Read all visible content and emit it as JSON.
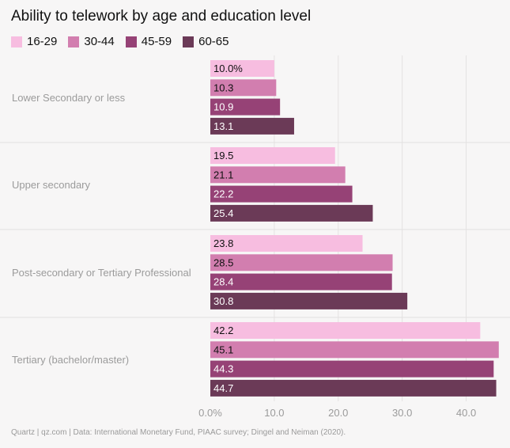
{
  "chart_data": {
    "type": "bar",
    "orientation": "horizontal",
    "title": "Ability to telework by age and education level",
    "categories": [
      "Lower Secondary or less",
      "Upper secondary",
      "Post-secondary or Tertiary Professional",
      "Tertiary (bachelor/master)"
    ],
    "series": [
      {
        "name": "16-29",
        "color": "#f7bde0",
        "values": [
          10.0,
          19.5,
          23.8,
          42.2
        ],
        "labels": [
          "10.0%",
          "19.5",
          "23.8",
          "42.2"
        ]
      },
      {
        "name": "30-44",
        "color": "#d27eaf",
        "values": [
          10.3,
          21.1,
          28.5,
          45.1
        ],
        "labels": [
          "10.3",
          "21.1",
          "28.5",
          "45.1"
        ]
      },
      {
        "name": "45-59",
        "color": "#964276",
        "values": [
          10.9,
          22.2,
          28.4,
          44.3
        ],
        "labels": [
          "10.9",
          "22.2",
          "28.4",
          "44.3"
        ]
      },
      {
        "name": "60-65",
        "color": "#6b3a57",
        "values": [
          13.1,
          25.4,
          30.8,
          44.7
        ],
        "labels": [
          "13.1",
          "25.4",
          "30.8",
          "44.7"
        ]
      }
    ],
    "xlim": [
      0,
      45
    ],
    "xticks": [
      0,
      10,
      20,
      30,
      40
    ],
    "xtick_labels": [
      "0.0%",
      "10.0",
      "20.0",
      "30.0",
      "40.0"
    ],
    "grid": true,
    "legend_position": "top-left"
  },
  "footer": {
    "source": "Quartz | qz.com | Data: International Monetary Fund, PIAAC survey; Dingel and Neiman (2020)."
  }
}
